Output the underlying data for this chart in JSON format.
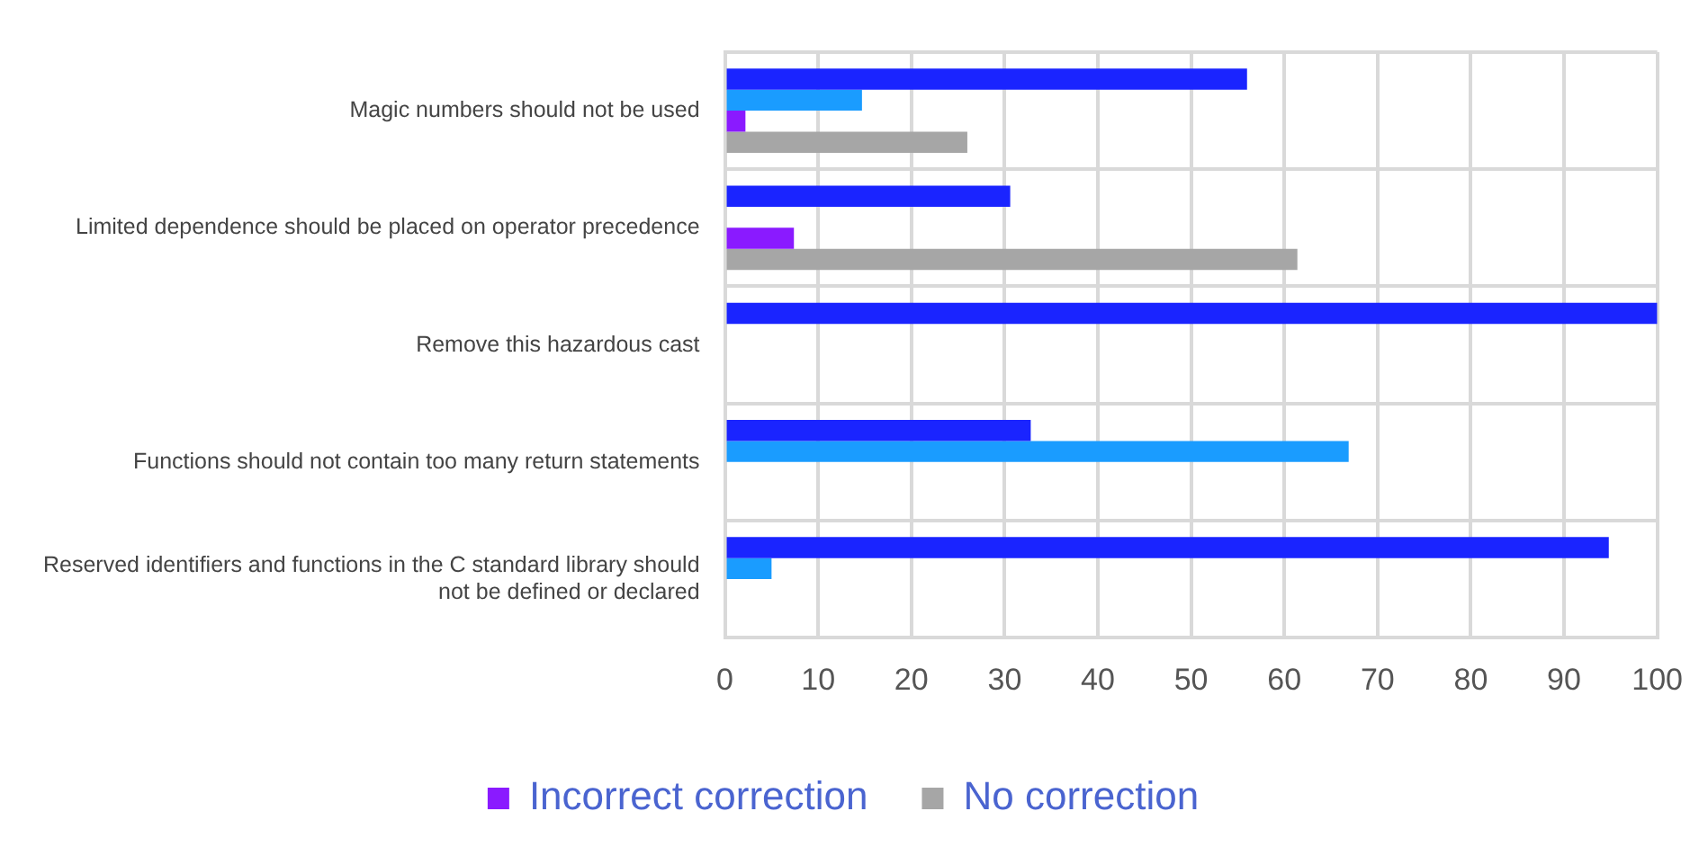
{
  "chart_data": {
    "type": "bar",
    "orientation": "horizontal",
    "categories": [
      "Magic numbers should not be used",
      "Limited dependence should be placed on operator precedence",
      "Remove this hazardous cast",
      "Functions should not contain too many return statements",
      "Reserved identifiers and functions in the C standard library should not be defined or declared"
    ],
    "series": [
      {
        "color": "#1a24ff",
        "values": [
          56,
          30.6,
          100,
          32.8,
          94.8
        ]
      },
      {
        "color": "#1a9cff",
        "values": [
          14.7,
          null,
          null,
          66.9,
          5
        ]
      },
      {
        "name": "Incorrect correction",
        "color": "#8a1aff",
        "values": [
          2.2,
          7.4,
          null,
          null,
          null
        ]
      },
      {
        "name": "No correction",
        "color": "#a6a6a6",
        "values": [
          26,
          61.4,
          null,
          null,
          null
        ]
      }
    ],
    "xlim": [
      0,
      100
    ],
    "xticks": [
      0,
      10,
      20,
      30,
      40,
      50,
      60,
      70,
      80,
      90,
      100
    ],
    "grid": true,
    "legend": "bottom"
  }
}
